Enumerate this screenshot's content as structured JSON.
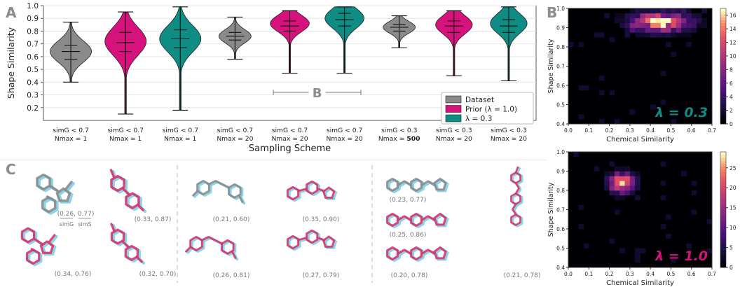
{
  "panels": {
    "A": {
      "letter": "A",
      "chart_data": {
        "type": "violin",
        "ylabel": "Shape Similarity",
        "xlabel": "Sampling Scheme",
        "ylim": [
          0.1,
          1.0
        ],
        "yticks": [
          "0.2",
          "0.3",
          "0.4",
          "0.5",
          "0.6",
          "0.7",
          "0.8",
          "0.9",
          "1.0"
        ],
        "grid": true,
        "legend_position": "lower-right",
        "legend": [
          {
            "label": "Dataset",
            "color": "#8a8a8a"
          },
          {
            "label": "Prior (λ = 1.0)",
            "color": "#d6127d"
          },
          {
            "label": "λ = 0.3",
            "color": "#0f8c84"
          }
        ],
        "annotation": "B",
        "categories": [
          {
            "line1": "sim_G < 0.7",
            "line2": "N_max = 1",
            "bold_n": ""
          },
          {
            "line1": "sim_G < 0.7",
            "line2": "N_max = 1",
            "bold_n": ""
          },
          {
            "line1": "sim_G < 0.7",
            "line2": "N_max = 1",
            "bold_n": ""
          },
          {
            "line1": "sim_G < 0.7",
            "line2": "N_max = 20",
            "bold_n": ""
          },
          {
            "line1": "sim_G < 0.7",
            "line2": "N_max = 20",
            "bold_n": ""
          },
          {
            "line1": "sim_G < 0.7",
            "line2": "N_max = 20",
            "bold_n": ""
          },
          {
            "line1": "sim_G < 0.3",
            "line2": "N_max = ",
            "bold_n": "500"
          },
          {
            "line1": "sim_G < 0.3",
            "line2": "N_max = 20",
            "bold_n": ""
          },
          {
            "line1": "sim_G < 0.3",
            "line2": "N_max = 20",
            "bold_n": ""
          }
        ],
        "series": [
          {
            "group": "Dataset",
            "color": "#8a8a8a",
            "min": 0.4,
            "max": 0.87,
            "q1": 0.58,
            "median": 0.64,
            "q3": 0.69,
            "peak": 0.64,
            "width": 0.9
          },
          {
            "group": "Prior (λ = 1.0)",
            "color": "#d6127d",
            "min": 0.15,
            "max": 0.95,
            "q1": 0.64,
            "median": 0.71,
            "q3": 0.79,
            "peak": 0.72,
            "width": 0.9
          },
          {
            "group": "λ = 0.3",
            "color": "#0f8c84",
            "min": 0.18,
            "max": 0.99,
            "q1": 0.67,
            "median": 0.74,
            "q3": 0.81,
            "peak": 0.74,
            "width": 0.9
          },
          {
            "group": "Dataset",
            "color": "#8a8a8a",
            "min": 0.58,
            "max": 0.91,
            "q1": 0.73,
            "median": 0.76,
            "q3": 0.79,
            "peak": 0.76,
            "width": 0.7
          },
          {
            "group": "Prior (λ = 1.0)",
            "color": "#d6127d",
            "min": 0.47,
            "max": 0.96,
            "q1": 0.8,
            "median": 0.84,
            "q3": 0.88,
            "peak": 0.86,
            "width": 0.85
          },
          {
            "group": "λ = 0.3",
            "color": "#0f8c84",
            "min": 0.47,
            "max": 0.99,
            "q1": 0.84,
            "median": 0.89,
            "q3": 0.94,
            "peak": 0.9,
            "width": 0.85
          },
          {
            "group": "Dataset",
            "color": "#8a8a8a",
            "min": 0.67,
            "max": 0.92,
            "q1": 0.8,
            "median": 0.83,
            "q3": 0.85,
            "peak": 0.83,
            "width": 0.7
          },
          {
            "group": "Prior (λ = 1.0)",
            "color": "#d6127d",
            "min": 0.45,
            "max": 0.96,
            "q1": 0.79,
            "median": 0.84,
            "q3": 0.88,
            "peak": 0.85,
            "width": 0.8
          },
          {
            "group": "λ = 0.3",
            "color": "#0f8c84",
            "min": 0.41,
            "max": 0.99,
            "q1": 0.79,
            "median": 0.84,
            "q3": 0.89,
            "peak": 0.86,
            "width": 0.8
          }
        ]
      }
    },
    "B": {
      "letter": "B",
      "heatmaps": [
        {
          "chart_data": {
            "type": "heatmap",
            "xlabel": "Chemical Similarity",
            "ylabel": "Shape Similarity",
            "xlim": [
              0.0,
              0.7
            ],
            "ylim": [
              0.4,
              1.0
            ],
            "xticks": [
              "0.0",
              "0.1",
              "0.2",
              "0.3",
              "0.4",
              "0.5",
              "0.6",
              "0.7"
            ],
            "yticks": [
              "0.4",
              "0.5",
              "0.6",
              "0.7",
              "0.8",
              "0.9",
              "1.0"
            ],
            "colorbar_ticks": [
              "0",
              "2",
              "4",
              "6",
              "8",
              "10",
              "12",
              "14",
              "16"
            ],
            "colorbar_max": 17,
            "label": "λ = 0.3",
            "label_color": "#0f8c84",
            "hotspot": {
              "x": 0.45,
              "y": 0.93,
              "sx": 0.14,
              "sy": 0.05
            }
          }
        },
        {
          "chart_data": {
            "type": "heatmap",
            "xlabel": "Chemical Similarity",
            "ylabel": "Shape Similarity",
            "xlim": [
              0.0,
              0.7
            ],
            "ylim": [
              0.4,
              1.0
            ],
            "xticks": [
              "0.0",
              "0.1",
              "0.2",
              "0.3",
              "0.4",
              "0.5",
              "0.6",
              "0.7"
            ],
            "yticks": [
              "0.4",
              "0.5",
              "0.6",
              "0.7",
              "0.8",
              "0.9",
              "1.0"
            ],
            "colorbar_ticks": [
              "0",
              "5",
              "10",
              "15",
              "20",
              "25"
            ],
            "colorbar_max": 29,
            "label": "λ = 1.0",
            "label_color": "#d6127d",
            "hotspot": {
              "x": 0.26,
              "y": 0.84,
              "sx": 0.06,
              "sy": 0.05
            }
          }
        }
      ]
    },
    "C": {
      "letter": "C",
      "first_label": {
        "values": "(0.26, 0.77)",
        "frac_g": "sim_G",
        "frac_s": "sim_S"
      },
      "labels": [
        "(0.33, 0.87)",
        "(0.34, 0.76)",
        "(0.32, 0.70)",
        "(0.21, 0.60)",
        "(0.35, 0.90)",
        "(0.26, 0.81)",
        "(0.27, 0.79)",
        "(0.23, 0.77)",
        "(0.25, 0.86)",
        "(0.20, 0.78)",
        "(0.21, 0.78)"
      ],
      "colors": {
        "ref": "#7fcfe6",
        "gray": "#8a8a8a",
        "pink": "#d6336c"
      }
    }
  }
}
